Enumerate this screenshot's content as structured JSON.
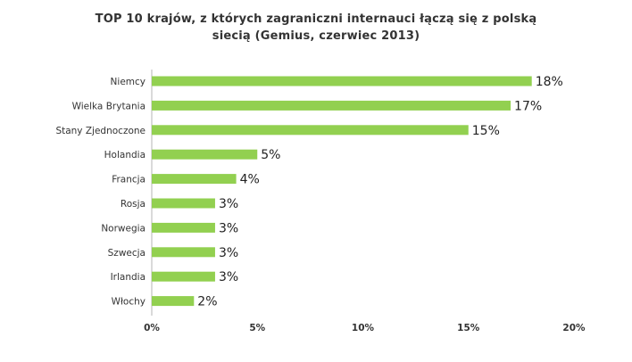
{
  "chart_data": {
    "type": "bar",
    "orientation": "horizontal",
    "title_lines": [
      "TOP 10 krajów, z których zagraniczni internauci łączą się z polską",
      "siecią (Gemius, czerwiec 2013)"
    ],
    "categories": [
      "Niemcy",
      "Wielka Brytania",
      "Stany Zjednoczone",
      "Holandia",
      "Francja",
      "Rosja",
      "Norwegia",
      "Szwecja",
      "Irlandia",
      "Włochy"
    ],
    "values": [
      18,
      17,
      15,
      5,
      4,
      3,
      3,
      3,
      3,
      2
    ],
    "value_labels": [
      "18%",
      "17%",
      "15%",
      "5%",
      "4%",
      "3%",
      "3%",
      "3%",
      "3%",
      "2%"
    ],
    "xlim": [
      0,
      20
    ],
    "xticks": [
      0,
      5,
      10,
      15,
      20
    ],
    "xtick_labels": [
      "0%",
      "5%",
      "10%",
      "15%",
      "20%"
    ],
    "bar_color": "#92D050",
    "grid": false,
    "legend": "none"
  }
}
